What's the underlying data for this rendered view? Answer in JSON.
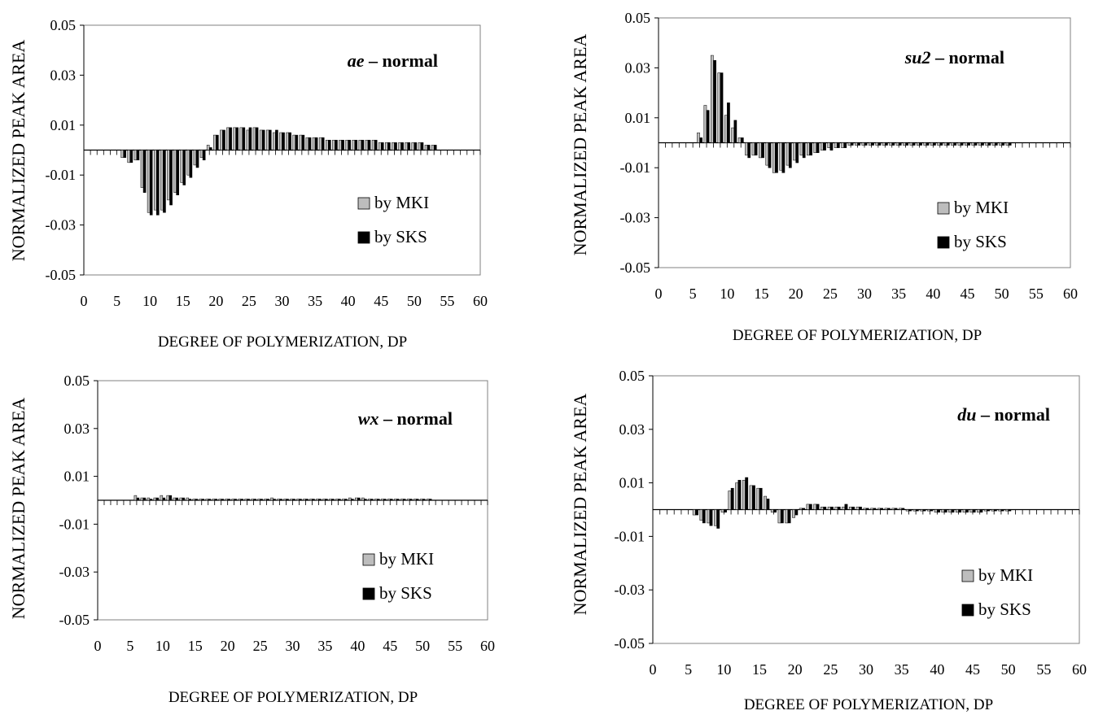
{
  "chart_data": [
    {
      "type": "bar",
      "title_italic": "ae",
      "title_rest": " – normal",
      "xlabel": "DEGREE OF POLYMERIZATION, DP",
      "ylabel": "NORMALIZED PEAK AREA",
      "ylim": [
        -0.05,
        0.05
      ],
      "xlim": [
        0,
        60
      ],
      "yticks": [
        "0.05",
        "0.03",
        "0.01",
        "-0.01",
        "-0.03",
        "-0.05"
      ],
      "xticks": [
        "0",
        "5",
        "10",
        "15",
        "20",
        "25",
        "30",
        "35",
        "40",
        "45",
        "50",
        "55",
        "60"
      ],
      "x": [
        6,
        7,
        8,
        9,
        10,
        11,
        12,
        13,
        14,
        15,
        16,
        17,
        18,
        19,
        20,
        21,
        22,
        23,
        24,
        25,
        26,
        27,
        28,
        29,
        30,
        31,
        32,
        33,
        34,
        35,
        36,
        37,
        38,
        39,
        40,
        41,
        42,
        43,
        44,
        45,
        46,
        47,
        48,
        49,
        50,
        51,
        52,
        53
      ],
      "legend_placement": "right",
      "series": [
        {
          "name": "by MKI",
          "values": [
            -0.003,
            -0.005,
            -0.004,
            -0.015,
            -0.025,
            -0.024,
            -0.024,
            -0.02,
            -0.017,
            -0.013,
            -0.01,
            -0.006,
            -0.003,
            0.002,
            0.006,
            0.008,
            0.009,
            0.009,
            0.009,
            0.008,
            0.009,
            0.008,
            0.008,
            0.007,
            0.007,
            0.007,
            0.006,
            0.006,
            0.005,
            0.005,
            0.005,
            0.004,
            0.004,
            0.004,
            0.004,
            0.004,
            0.004,
            0.004,
            0.004,
            0.003,
            0.003,
            0.003,
            0.003,
            0.003,
            0.003,
            0.003,
            0.002,
            0.002
          ]
        },
        {
          "name": "by SKS",
          "values": [
            -0.003,
            -0.005,
            -0.004,
            -0.017,
            -0.026,
            -0.026,
            -0.025,
            -0.022,
            -0.018,
            -0.014,
            -0.011,
            -0.007,
            -0.004,
            0.001,
            0.006,
            0.008,
            0.009,
            0.009,
            0.009,
            0.009,
            0.009,
            0.008,
            0.008,
            0.008,
            0.007,
            0.007,
            0.006,
            0.006,
            0.005,
            0.005,
            0.005,
            0.004,
            0.004,
            0.004,
            0.004,
            0.004,
            0.004,
            0.004,
            0.004,
            0.003,
            0.003,
            0.003,
            0.003,
            0.003,
            0.003,
            0.003,
            0.002,
            0.002
          ]
        }
      ]
    },
    {
      "type": "bar",
      "title_italic": "su2",
      "title_rest": " – normal",
      "xlabel": "DEGREE OF POLYMERIZATION, DP",
      "ylabel": "NORMALIZED PEAK AREA",
      "ylim": [
        -0.05,
        0.05
      ],
      "xlim": [
        0,
        60
      ],
      "yticks": [
        "0.05",
        "0.03",
        "0.01",
        "-0.01",
        "-0.03",
        "-0.05"
      ],
      "xticks": [
        "0",
        "5",
        "10",
        "15",
        "20",
        "25",
        "30",
        "35",
        "40",
        "45",
        "50",
        "55",
        "60"
      ],
      "x": [
        6,
        7,
        8,
        9,
        10,
        11,
        12,
        13,
        14,
        15,
        16,
        17,
        18,
        19,
        20,
        21,
        22,
        23,
        24,
        25,
        26,
        27,
        28,
        29,
        30,
        31,
        32,
        33,
        34,
        35,
        36,
        37,
        38,
        39,
        40,
        41,
        42,
        43,
        44,
        45,
        46,
        47,
        48,
        49,
        50,
        51
      ],
      "legend_placement": "right",
      "series": [
        {
          "name": "by MKI",
          "values": [
            0.004,
            0.015,
            0.035,
            0.028,
            0.011,
            0.006,
            0.002,
            -0.005,
            -0.005,
            -0.006,
            -0.009,
            -0.012,
            -0.011,
            -0.009,
            -0.007,
            -0.005,
            -0.005,
            -0.004,
            -0.003,
            -0.002,
            -0.002,
            -0.002,
            -0.001,
            -0.001,
            -0.001,
            -0.001,
            -0.001,
            -0.001,
            -0.001,
            -0.001,
            -0.001,
            -0.001,
            -0.001,
            -0.001,
            -0.001,
            -0.001,
            -0.001,
            -0.001,
            -0.001,
            -0.001,
            -0.001,
            -0.001,
            -0.001,
            -0.001,
            -0.001,
            -0.001
          ]
        },
        {
          "name": "by SKS",
          "values": [
            0.002,
            0.013,
            0.033,
            0.028,
            0.016,
            0.009,
            0.002,
            -0.006,
            -0.005,
            -0.006,
            -0.01,
            -0.012,
            -0.012,
            -0.01,
            -0.008,
            -0.006,
            -0.005,
            -0.004,
            -0.003,
            -0.003,
            -0.002,
            -0.002,
            -0.001,
            -0.001,
            -0.001,
            -0.001,
            -0.001,
            -0.001,
            -0.001,
            -0.001,
            -0.001,
            -0.001,
            -0.001,
            -0.001,
            -0.001,
            -0.001,
            -0.001,
            -0.001,
            -0.001,
            -0.001,
            -0.001,
            -0.001,
            -0.001,
            -0.001,
            -0.001,
            -0.001
          ]
        }
      ]
    },
    {
      "type": "bar",
      "title_italic": "wx",
      "title_rest": " – normal",
      "xlabel": "DEGREE OF POLYMERIZATION, DP",
      "ylabel": "NORMALIZED PEAK AREA",
      "ylim": [
        -0.05,
        0.05
      ],
      "xlim": [
        0,
        60
      ],
      "yticks": [
        "0.05",
        "0.03",
        "0.01",
        "-0.01",
        "-0.03",
        "-0.05"
      ],
      "xticks": [
        "0",
        "5",
        "10",
        "15",
        "20",
        "25",
        "30",
        "35",
        "40",
        "45",
        "50",
        "55",
        "60"
      ],
      "x": [
        6,
        7,
        8,
        9,
        10,
        11,
        12,
        13,
        14,
        15,
        16,
        17,
        18,
        19,
        20,
        21,
        22,
        23,
        24,
        25,
        26,
        27,
        28,
        29,
        30,
        31,
        32,
        33,
        34,
        35,
        36,
        37,
        38,
        39,
        40,
        41,
        42,
        43,
        44,
        45,
        46,
        47,
        48,
        49,
        50,
        51
      ],
      "legend_placement": "right",
      "series": [
        {
          "name": "by MKI",
          "values": [
            0.002,
            0.001,
            0.001,
            0.001,
            0.002,
            0.002,
            0.001,
            0.001,
            0.001,
            0.0005,
            0.0005,
            0.0005,
            0.0005,
            0.0005,
            0.0005,
            0.0005,
            0.0005,
            0.0005,
            0.0005,
            0.0005,
            0.0005,
            0.001,
            0.0005,
            0.0005,
            0.0005,
            0.0005,
            0.0005,
            0.0005,
            0.0005,
            0.0005,
            0.0005,
            0.0005,
            0.0005,
            0.001,
            0.001,
            0.001,
            0.0005,
            0.0005,
            0.0005,
            0.0005,
            0.0005,
            0.0005,
            0.0005,
            0.0005,
            0.0005,
            0.0005
          ]
        },
        {
          "name": "by SKS",
          "values": [
            0.001,
            0.001,
            0.0005,
            0.001,
            0.001,
            0.002,
            0.001,
            0.001,
            0.0005,
            0.0005,
            0.0005,
            0.0005,
            0.0005,
            0.0005,
            0.0005,
            0.0005,
            0.0005,
            0.0005,
            0.0005,
            0.0005,
            0.0005,
            0.0005,
            0.0005,
            0.0005,
            0.0005,
            0.0005,
            0.0005,
            0.0005,
            0.0005,
            0.0005,
            0.0005,
            0.0005,
            0.0005,
            0.0005,
            0.001,
            0.0005,
            0.0005,
            0.0005,
            0.0005,
            0.0005,
            0.0005,
            0.0005,
            0.0005,
            0.0005,
            0.0005,
            0.0005
          ]
        }
      ]
    },
    {
      "type": "bar",
      "title_italic": "du",
      "title_rest": " – normal",
      "xlabel": "DEGREE OF POLYMERIZATION, DP",
      "ylabel": "NORMALIZED PEAK AREA",
      "ylim": [
        -0.05,
        0.05
      ],
      "xlim": [
        0,
        60
      ],
      "yticks": [
        "0.05",
        "0.03",
        "0.01",
        "-0.01",
        "-0.03",
        "-0.05"
      ],
      "xticks": [
        "0",
        "5",
        "10",
        "15",
        "20",
        "25",
        "30",
        "35",
        "40",
        "45",
        "50",
        "55",
        "60"
      ],
      "x": [
        6,
        7,
        8,
        9,
        10,
        11,
        12,
        13,
        14,
        15,
        16,
        17,
        18,
        19,
        20,
        21,
        22,
        23,
        24,
        25,
        26,
        27,
        28,
        29,
        30,
        31,
        32,
        33,
        34,
        35,
        36,
        37,
        38,
        39,
        40,
        41,
        42,
        43,
        44,
        45,
        46,
        47,
        48,
        49,
        50
      ],
      "legend_placement": "right",
      "series": [
        {
          "name": "by MKI",
          "values": [
            -0.002,
            -0.004,
            -0.005,
            -0.006,
            -0.001,
            0.007,
            0.01,
            0.011,
            0.009,
            0.008,
            0.005,
            -0.001,
            -0.005,
            -0.005,
            -0.003,
            0.0005,
            0.002,
            0.002,
            0.001,
            0.001,
            0.001,
            0.001,
            0.001,
            0.001,
            0.0005,
            0.0005,
            0.0005,
            0.0005,
            0.0005,
            0.0005,
            -0.0005,
            -0.0005,
            -0.0005,
            -0.0005,
            -0.001,
            -0.001,
            -0.001,
            -0.001,
            -0.001,
            -0.001,
            -0.001,
            -0.0005,
            -0.0005,
            -0.0005,
            -0.0005
          ]
        },
        {
          "name": "by SKS",
          "values": [
            -0.002,
            -0.005,
            -0.006,
            -0.007,
            -0.001,
            0.008,
            0.011,
            0.012,
            0.009,
            0.008,
            0.004,
            -0.001,
            -0.005,
            -0.005,
            -0.002,
            0.0005,
            0.002,
            0.002,
            0.001,
            0.001,
            0.001,
            0.002,
            0.001,
            0.001,
            0.0005,
            0.0005,
            0.0005,
            0.0005,
            0.0005,
            0.0005,
            -0.0005,
            -0.0005,
            -0.0005,
            -0.0005,
            -0.001,
            -0.001,
            -0.001,
            -0.001,
            -0.001,
            -0.001,
            -0.001,
            -0.0005,
            -0.0005,
            -0.0005,
            -0.0005
          ]
        }
      ]
    }
  ],
  "colors": {
    "mki_fill": "#bdbdbd",
    "sks_fill": "#000000",
    "frame": "#808080",
    "axis": "#000000"
  }
}
